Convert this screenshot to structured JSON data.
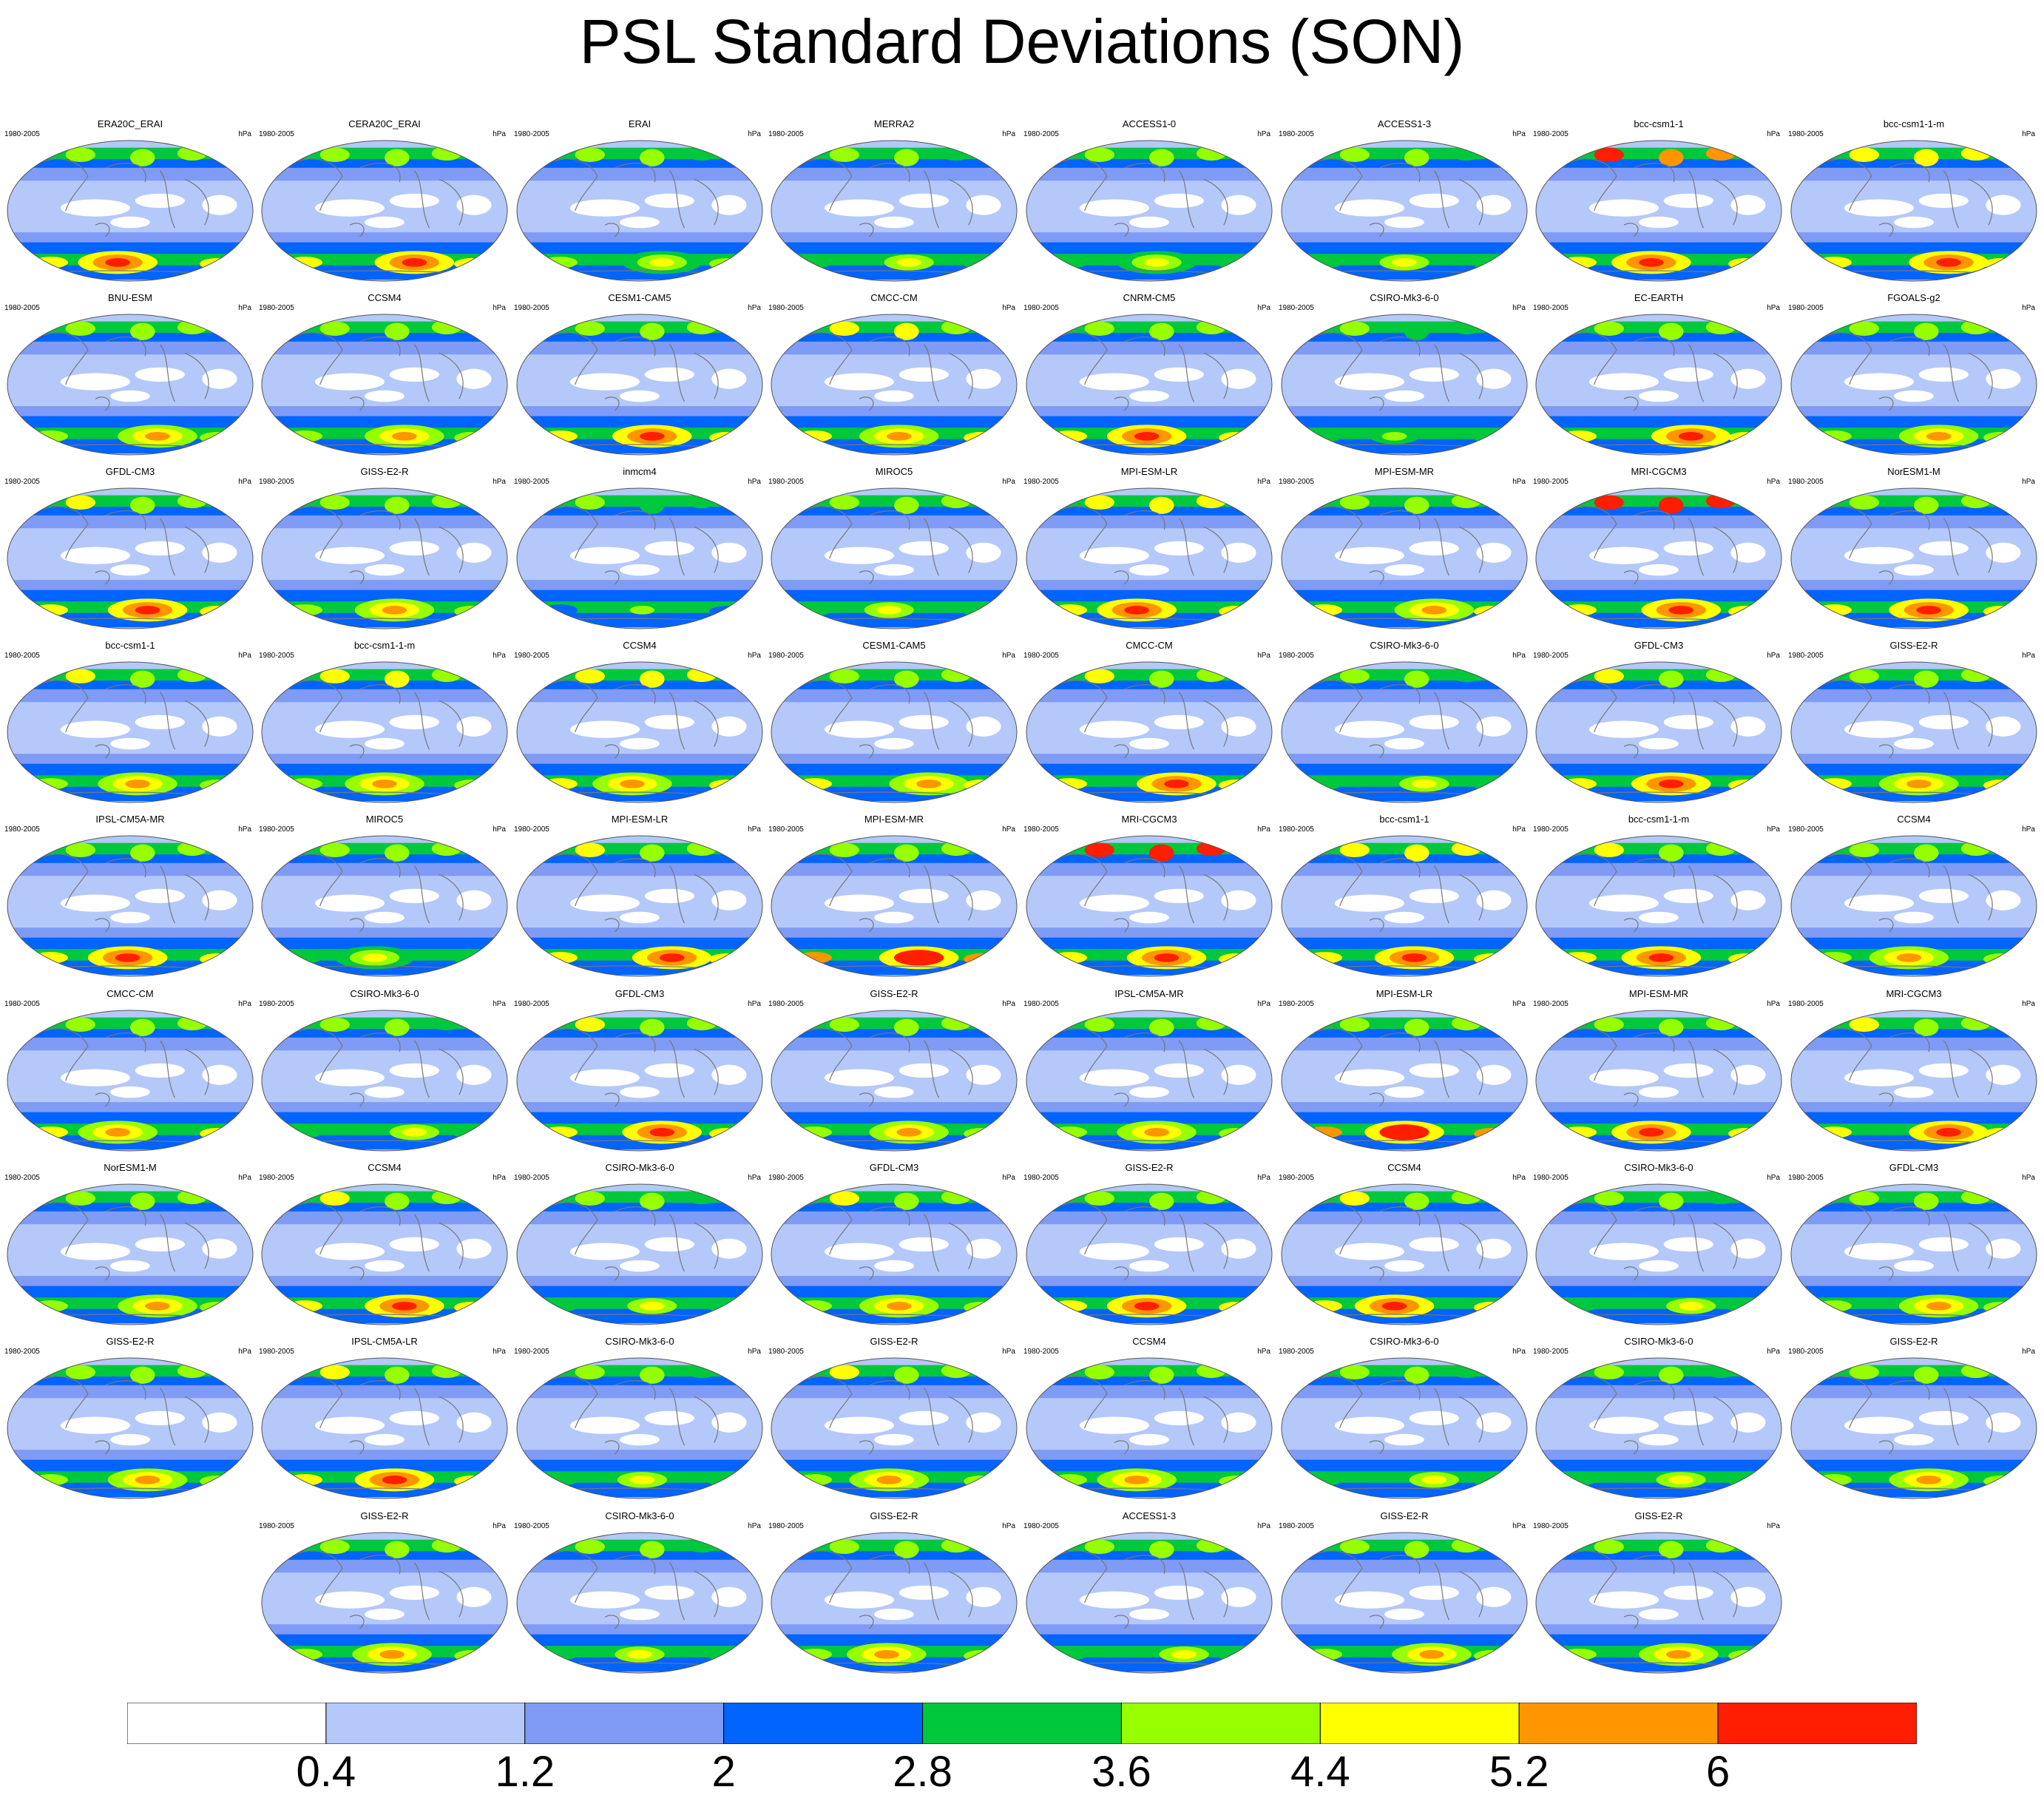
{
  "title": "PSL Standard Deviations (SON)",
  "period": "1980-2005",
  "units": "hPa",
  "chart_data": {
    "type": "heatmap",
    "projection": "Robinson (global)",
    "title": "PSL Standard Deviations (SON)",
    "units": "hPa",
    "levels": [
      0.4,
      1.2,
      2,
      2.8,
      3.6,
      4.4,
      5.2,
      6
    ],
    "colors": [
      "#ffffff",
      "#b4c8fa",
      "#7f9bf5",
      "#0064ff",
      "#00c83c",
      "#96ff00",
      "#ffff00",
      "#ff9600",
      "#ff1e00"
    ],
    "panels": [
      {
        "name": "ERA20C_ERAI",
        "south_peak": 6.2,
        "north_peak": 4.0
      },
      {
        "name": "CERA20C_ERAI",
        "south_peak": 6.4,
        "north_peak": 4.0
      },
      {
        "name": "ERAI",
        "south_peak": 5.0,
        "north_peak": 3.9
      },
      {
        "name": "MERRA2",
        "south_peak": 4.6,
        "north_peak": 3.9
      },
      {
        "name": "ACCESS1-0",
        "south_peak": 4.8,
        "north_peak": 4.2
      },
      {
        "name": "ACCESS1-3",
        "south_peak": 4.5,
        "north_peak": 3.9
      },
      {
        "name": "bcc-csm1-1",
        "south_peak": 6.3,
        "north_peak": 6.1
      },
      {
        "name": "bcc-csm1-1-m",
        "south_peak": 6.3,
        "north_peak": 5.0
      },
      {
        "name": "BNU-ESM",
        "south_peak": 5.4,
        "north_peak": 4.3
      },
      {
        "name": "CCSM4",
        "south_peak": 5.6,
        "north_peak": 4.2
      },
      {
        "name": "CESM1-CAM5",
        "south_peak": 6.2,
        "north_peak": 4.3
      },
      {
        "name": "CMCC-CM",
        "south_peak": 5.8,
        "north_peak": 4.7
      },
      {
        "name": "CNRM-CM5",
        "south_peak": 6.3,
        "north_peak": 4.2
      },
      {
        "name": "CSIRO-Mk3-6-0",
        "south_peak": 4.3,
        "north_peak": 3.8
      },
      {
        "name": "EC-EARTH",
        "south_peak": 6.4,
        "north_peak": 4.3
      },
      {
        "name": "FGOALS-g2",
        "south_peak": 5.6,
        "north_peak": 4.3
      },
      {
        "name": "GFDL-CM3",
        "south_peak": 6.3,
        "north_peak": 4.6
      },
      {
        "name": "GISS-E2-R",
        "south_peak": 5.6,
        "north_peak": 4.2
      },
      {
        "name": "inmcm4",
        "south_peak": 3.7,
        "north_peak": 3.7
      },
      {
        "name": "MIROC5",
        "south_peak": 4.5,
        "north_peak": 4.1
      },
      {
        "name": "MPI-ESM-LR",
        "south_peak": 6.3,
        "north_peak": 5.0
      },
      {
        "name": "MPI-ESM-MR",
        "south_peak": 5.9,
        "north_peak": 4.2
      },
      {
        "name": "MRI-CGCM3",
        "south_peak": 6.5,
        "north_peak": 6.5
      },
      {
        "name": "NorESM1-M",
        "south_peak": 6.5,
        "north_peak": 4.3
      },
      {
        "name": "bcc-csm1-1",
        "south_peak": 5.6,
        "north_peak": 4.6
      },
      {
        "name": "bcc-csm1-1-m",
        "south_peak": 5.7,
        "north_peak": 4.7
      },
      {
        "name": "CCSM4",
        "south_peak": 5.9,
        "north_peak": 5.0
      },
      {
        "name": "CESM1-CAM5",
        "south_peak": 5.9,
        "north_peak": 4.3
      },
      {
        "name": "CMCC-CM",
        "south_peak": 6.2,
        "north_peak": 4.4
      },
      {
        "name": "CSIRO-Mk3-6-0",
        "south_peak": 4.4,
        "north_peak": 3.9
      },
      {
        "name": "GFDL-CM3",
        "south_peak": 6.3,
        "north_peak": 4.4
      },
      {
        "name": "GISS-E2-R",
        "south_peak": 5.9,
        "north_peak": 4.2
      },
      {
        "name": "IPSL-CM5A-MR",
        "south_peak": 6.3,
        "north_peak": 4.1
      },
      {
        "name": "MIROC5",
        "south_peak": 4.8,
        "north_peak": 4.0
      },
      {
        "name": "MPI-ESM-LR",
        "south_peak": 6.2,
        "north_peak": 4.4
      },
      {
        "name": "MPI-ESM-MR",
        "south_peak": 6.8,
        "north_peak": 4.3
      },
      {
        "name": "MRI-CGCM3",
        "south_peak": 6.4,
        "north_peak": 6.4
      },
      {
        "name": "bcc-csm1-1",
        "south_peak": 6.2,
        "north_peak": 5.0
      },
      {
        "name": "bcc-csm1-1-m",
        "south_peak": 6.2,
        "north_peak": 4.6
      },
      {
        "name": "CCSM4",
        "south_peak": 5.5,
        "north_peak": 4.1
      },
      {
        "name": "CMCC-CM",
        "south_peak": 5.8,
        "north_peak": 4.2
      },
      {
        "name": "CSIRO-Mk3-6-0",
        "south_peak": 4.4,
        "north_peak": 3.9
      },
      {
        "name": "GFDL-CM3",
        "south_peak": 6.5,
        "north_peak": 4.6
      },
      {
        "name": "GISS-E2-R",
        "south_peak": 5.2,
        "north_peak": 4.0
      },
      {
        "name": "IPSL-CM5A-MR",
        "south_peak": 5.4,
        "north_peak": 4.0
      },
      {
        "name": "MPI-ESM-LR",
        "south_peak": 6.8,
        "north_peak": 4.3
      },
      {
        "name": "MPI-ESM-MR",
        "south_peak": 6.1,
        "north_peak": 4.3
      },
      {
        "name": "MRI-CGCM3",
        "south_peak": 6.1,
        "north_peak": 4.5
      },
      {
        "name": "NorESM1-M",
        "south_peak": 5.4,
        "north_peak": 4.2
      },
      {
        "name": "CCSM4",
        "south_peak": 6.3,
        "north_peak": 4.6
      },
      {
        "name": "CSIRO-Mk3-6-0",
        "south_peak": 4.4,
        "north_peak": 3.9
      },
      {
        "name": "GFDL-CM3",
        "south_peak": 5.4,
        "north_peak": 4.4
      },
      {
        "name": "GISS-E2-R",
        "south_peak": 6.2,
        "north_peak": 4.1
      },
      {
        "name": "CCSM4",
        "south_peak": 6.3,
        "north_peak": 4.4
      },
      {
        "name": "CSIRO-Mk3-6-0",
        "south_peak": 4.5,
        "north_peak": 3.9
      },
      {
        "name": "GFDL-CM3",
        "south_peak": 5.4,
        "north_peak": 4.3
      },
      {
        "name": "GISS-E2-R",
        "south_peak": 5.4,
        "north_peak": 4.3
      },
      {
        "name": "IPSL-CM5A-LR",
        "south_peak": 6.2,
        "north_peak": 4.5
      },
      {
        "name": "CSIRO-Mk3-6-0",
        "south_peak": 4.4,
        "north_peak": 3.9
      },
      {
        "name": "GISS-E2-R",
        "south_peak": 5.4,
        "north_peak": 4.4
      },
      {
        "name": "CCSM4",
        "south_peak": 5.3,
        "north_peak": 4.2
      },
      {
        "name": "CSIRO-Mk3-6-0",
        "south_peak": 4.4,
        "north_peak": 3.9
      },
      {
        "name": "CSIRO-Mk3-6-0",
        "south_peak": 4.4,
        "north_peak": 3.9
      },
      {
        "name": "GISS-E2-R",
        "south_peak": 5.3,
        "north_peak": 4.3
      },
      {
        "name": "GISS-E2-R",
        "south_peak": 5.4,
        "north_peak": 4.3
      },
      {
        "name": "CSIRO-Mk3-6-0",
        "south_peak": 4.4,
        "north_peak": 3.9
      },
      {
        "name": "GISS-E2-R",
        "south_peak": 5.4,
        "north_peak": 4.3
      },
      {
        "name": "ACCESS1-3",
        "south_peak": 4.6,
        "north_peak": 4.0
      },
      {
        "name": "GISS-E2-R",
        "south_peak": 5.4,
        "north_peak": 4.3
      },
      {
        "name": "GISS-E2-R",
        "south_peak": 5.4,
        "north_peak": 4.3
      }
    ]
  }
}
